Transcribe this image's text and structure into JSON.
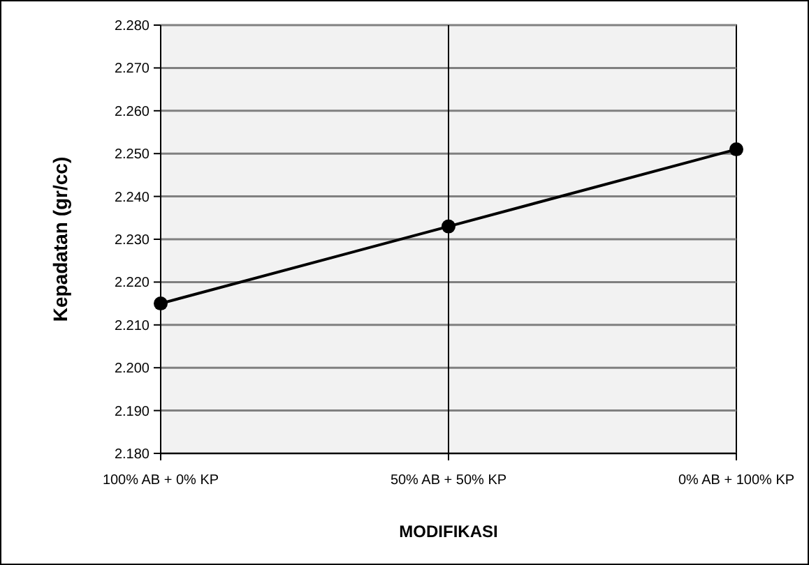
{
  "chart_data": {
    "type": "line",
    "xlabel": "MODIFIKASI",
    "ylabel": "Kepadatan (gr/cc)",
    "categories": [
      "100% AB + 0% KP",
      "50% AB + 50% KP",
      "0% AB + 100% KP"
    ],
    "series": [
      {
        "color": "#000000",
        "values": [
          2.215,
          2.233,
          2.251
        ]
      }
    ],
    "ylim": [
      2.18,
      2.28
    ],
    "yticks": [
      {
        "value": 2.18,
        "label": "2.180"
      },
      {
        "value": 2.19,
        "label": "2.190"
      },
      {
        "value": 2.2,
        "label": "2.200"
      },
      {
        "value": 2.21,
        "label": "2.210"
      },
      {
        "value": 2.22,
        "label": "2.220"
      },
      {
        "value": 2.23,
        "label": "2.230"
      },
      {
        "value": 2.24,
        "label": "2.240"
      },
      {
        "value": 2.25,
        "label": "2.250"
      },
      {
        "value": 2.26,
        "label": "2.260"
      },
      {
        "value": 2.27,
        "label": "2.270"
      },
      {
        "value": 2.28,
        "label": "2.280"
      }
    ],
    "ref_lines": [
      {
        "axis": "x",
        "value": "50% AB + 50% KP",
        "color": "#000000"
      }
    ],
    "grid": "y",
    "marker": "circle",
    "line_style": "solid"
  }
}
